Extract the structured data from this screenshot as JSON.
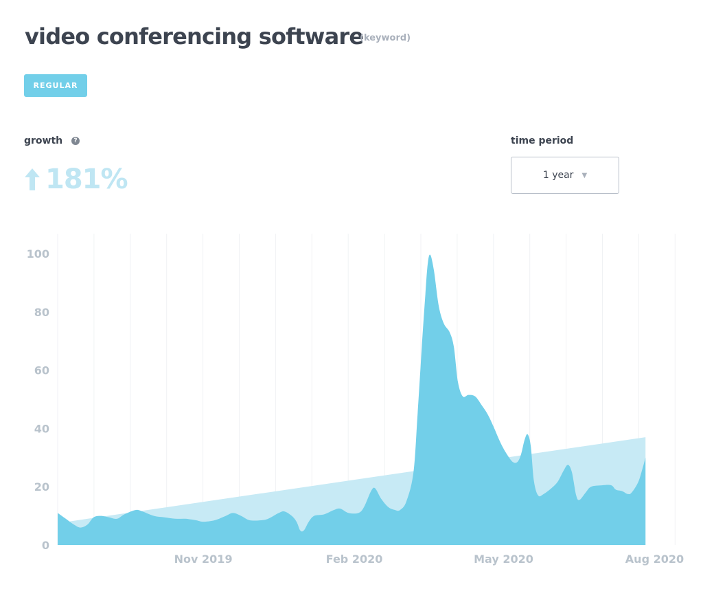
{
  "header": {
    "title": "video conferencing software",
    "subtitle": "(keyword)",
    "tag": "REGULAR"
  },
  "growth": {
    "label": "growth",
    "help_icon": "?",
    "value": "181%",
    "direction": "up"
  },
  "time_period": {
    "label": "time period",
    "selected": "1 year"
  },
  "colors": {
    "area": "#72cfe9",
    "trend": "#c7eaf5",
    "growth": "#bfe6f3",
    "tag": "#72cfe9",
    "tick_text": "#b9c3cc"
  },
  "chart_data": {
    "type": "area",
    "y_ticks": [
      "0",
      "20",
      "40",
      "60",
      "80",
      "100"
    ],
    "x_ticks": [
      {
        "label": "Nov 2019",
        "t": 0.2405
      },
      {
        "label": "Feb 2020",
        "t": 0.4898
      },
      {
        "label": "May 2020",
        "t": 0.7364
      },
      {
        "label": "Aug 2020",
        "t": 0.9858
      }
    ],
    "ylim": [
      0,
      100
    ],
    "grid": true,
    "series": [
      {
        "kind": "interest",
        "values": [
          [
            0.0,
            11
          ],
          [
            0.0134,
            9
          ],
          [
            0.0268,
            7
          ],
          [
            0.0375,
            6
          ],
          [
            0.0492,
            7
          ],
          [
            0.0593,
            9.5
          ],
          [
            0.0713,
            10
          ],
          [
            0.0849,
            9.5
          ],
          [
            0.0982,
            9
          ],
          [
            0.1099,
            10.5
          ],
          [
            0.1286,
            12
          ],
          [
            0.1403,
            11.5
          ],
          [
            0.159,
            10
          ],
          [
            0.1764,
            9.5
          ],
          [
            0.1952,
            9
          ],
          [
            0.2108,
            9
          ],
          [
            0.2285,
            8.5
          ],
          [
            0.2402,
            8
          ],
          [
            0.2593,
            8.5
          ],
          [
            0.2777,
            10
          ],
          [
            0.2896,
            11
          ],
          [
            0.303,
            10
          ],
          [
            0.3172,
            8.5
          ],
          [
            0.3364,
            8.5
          ],
          [
            0.3476,
            9
          ],
          [
            0.3652,
            11
          ],
          [
            0.3747,
            11.5
          ],
          [
            0.3866,
            10
          ],
          [
            0.3945,
            8
          ],
          [
            0.4006,
            5
          ],
          [
            0.4066,
            5
          ],
          [
            0.4147,
            8
          ],
          [
            0.4235,
            10
          ],
          [
            0.4396,
            10.5
          ],
          [
            0.456,
            12
          ],
          [
            0.4663,
            12.5
          ],
          [
            0.4804,
            11
          ],
          [
            0.4968,
            11
          ],
          [
            0.5058,
            13
          ],
          [
            0.5175,
            18.5
          ],
          [
            0.524,
            19.5
          ],
          [
            0.5339,
            16
          ],
          [
            0.5461,
            13
          ],
          [
            0.5572,
            12
          ],
          [
            0.5654,
            12
          ],
          [
            0.576,
            15
          ],
          [
            0.5876,
            25
          ],
          [
            0.5944,
            45
          ],
          [
            0.6014,
            68
          ],
          [
            0.6072,
            86
          ],
          [
            0.6114,
            97
          ],
          [
            0.6156,
            99.5
          ],
          [
            0.6215,
            94
          ],
          [
            0.6294,
            82
          ],
          [
            0.6377,
            76
          ],
          [
            0.6474,
            73
          ],
          [
            0.6543,
            68
          ],
          [
            0.661,
            56
          ],
          [
            0.669,
            51
          ],
          [
            0.6784,
            51.5
          ],
          [
            0.6894,
            51
          ],
          [
            0.7002,
            48
          ],
          [
            0.7098,
            45
          ],
          [
            0.7191,
            41
          ],
          [
            0.7316,
            35
          ],
          [
            0.7424,
            31
          ],
          [
            0.7517,
            28.5
          ],
          [
            0.7592,
            28.5
          ],
          [
            0.7651,
            31
          ],
          [
            0.771,
            36
          ],
          [
            0.7761,
            38
          ],
          [
            0.7813,
            34
          ],
          [
            0.7865,
            22
          ],
          [
            0.7935,
            17
          ],
          [
            0.8027,
            17.5
          ],
          [
            0.8181,
            20
          ],
          [
            0.8267,
            22
          ],
          [
            0.8355,
            25.5
          ],
          [
            0.8427,
            27.5
          ],
          [
            0.8492,
            25
          ],
          [
            0.8563,
            17
          ],
          [
            0.8618,
            15.5
          ],
          [
            0.8719,
            18
          ],
          [
            0.8808,
            20
          ],
          [
            0.899,
            20.5
          ],
          [
            0.9143,
            20.5
          ],
          [
            0.9217,
            19
          ],
          [
            0.9322,
            18.5
          ],
          [
            0.9414,
            17.5
          ],
          [
            0.9479,
            18
          ],
          [
            0.9586,
            21.5
          ],
          [
            0.9655,
            26
          ],
          [
            0.9708,
            30
          ]
        ]
      },
      {
        "kind": "trend",
        "values": [
          [
            0.0,
            7.5
          ],
          [
            0.9708,
            37
          ]
        ]
      }
    ]
  }
}
